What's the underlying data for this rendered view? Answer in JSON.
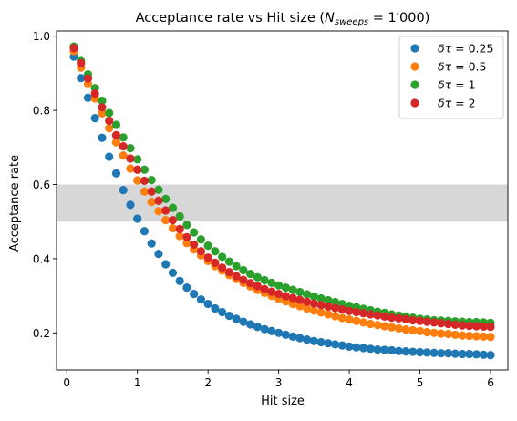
{
  "chart_data": {
    "type": "scatter",
    "title": "Acceptance rate vs Hit size (N_sweeps = 1′000)",
    "title_parts": {
      "prefix": "Acceptance rate vs Hit size (",
      "var": "N",
      "sub": "sweeps",
      "suffix": " = 1′000)"
    },
    "xlabel": "Hit size",
    "ylabel": "Acceptance rate",
    "xlim": [
      -0.145,
      6.245
    ],
    "ylim": [
      0.1,
      1.014
    ],
    "xticks": [
      0,
      1,
      2,
      3,
      4,
      5,
      6
    ],
    "xtick_labels": [
      "0",
      "1",
      "2",
      "3",
      "4",
      "5",
      "6"
    ],
    "yticks": [
      0.2,
      0.4,
      0.6,
      0.8,
      1.0
    ],
    "ytick_labels": [
      "0.2",
      "0.4",
      "0.6",
      "0.8",
      "1.0"
    ],
    "grid": false,
    "legend_position": "top-right",
    "shaded_band": {
      "y0": 0.5,
      "y1": 0.6,
      "color": "#d3d3d3"
    },
    "x": [
      0.1,
      0.2,
      0.3,
      0.4,
      0.5,
      0.6,
      0.7,
      0.8,
      0.9,
      1.0,
      1.1,
      1.2,
      1.3,
      1.4,
      1.5,
      1.6,
      1.7,
      1.8,
      1.9,
      2.0,
      2.1,
      2.2,
      2.3,
      2.4,
      2.5,
      2.6,
      2.7,
      2.8,
      2.9,
      3.0,
      3.1,
      3.2,
      3.3,
      3.4,
      3.5,
      3.6,
      3.7,
      3.8,
      3.9,
      4.0,
      4.1,
      4.2,
      4.3,
      4.4,
      4.5,
      4.6,
      4.7,
      4.8,
      4.9,
      5.0,
      5.1,
      5.2,
      5.3,
      5.4,
      5.5,
      5.6,
      5.7,
      5.8,
      5.9,
      6.0
    ],
    "series": [
      {
        "name": "δτ = 0.25",
        "label_parts": {
          "var": "δτ",
          "eq": " = 0.25"
        },
        "color": "#1f77b4",
        "values": [
          0.945,
          0.887,
          0.834,
          0.779,
          0.726,
          0.675,
          0.63,
          0.585,
          0.545,
          0.508,
          0.474,
          0.441,
          0.413,
          0.385,
          0.362,
          0.34,
          0.322,
          0.305,
          0.29,
          0.278,
          0.266,
          0.256,
          0.246,
          0.238,
          0.23,
          0.223,
          0.216,
          0.21,
          0.205,
          0.2,
          0.195,
          0.19,
          0.186,
          0.182,
          0.178,
          0.175,
          0.172,
          0.169,
          0.166,
          0.163,
          0.161,
          0.159,
          0.157,
          0.155,
          0.154,
          0.153,
          0.151,
          0.15,
          0.149,
          0.148,
          0.147,
          0.146,
          0.145,
          0.145,
          0.144,
          0.143,
          0.143,
          0.142,
          0.141,
          0.14
        ]
      },
      {
        "name": "δτ = 0.5",
        "label_parts": {
          "var": "δτ",
          "eq": " = 0.5"
        },
        "color": "#ff7f0e",
        "values": [
          0.96,
          0.915,
          0.871,
          0.832,
          0.792,
          0.752,
          0.714,
          0.678,
          0.643,
          0.611,
          0.581,
          0.553,
          0.528,
          0.504,
          0.482,
          0.461,
          0.442,
          0.425,
          0.409,
          0.394,
          0.38,
          0.368,
          0.356,
          0.345,
          0.335,
          0.325,
          0.316,
          0.308,
          0.3,
          0.292,
          0.285,
          0.278,
          0.272,
          0.266,
          0.26,
          0.255,
          0.25,
          0.245,
          0.24,
          0.236,
          0.232,
          0.228,
          0.224,
          0.221,
          0.218,
          0.215,
          0.212,
          0.209,
          0.207,
          0.205,
          0.202,
          0.2,
          0.198,
          0.197,
          0.195,
          0.193,
          0.192,
          0.191,
          0.19,
          0.189
        ]
      },
      {
        "name": "δτ = 1",
        "label_parts": {
          "var": "δτ",
          "eq": " = 1"
        },
        "color": "#2ca02c",
        "values": [
          0.972,
          0.933,
          0.897,
          0.86,
          0.826,
          0.793,
          0.761,
          0.727,
          0.698,
          0.668,
          0.64,
          0.612,
          0.586,
          0.561,
          0.537,
          0.514,
          0.491,
          0.471,
          0.452,
          0.435,
          0.42,
          0.405,
          0.392,
          0.38,
          0.369,
          0.359,
          0.35,
          0.342,
          0.335,
          0.328,
          0.322,
          0.316,
          0.31,
          0.304,
          0.298,
          0.293,
          0.288,
          0.283,
          0.278,
          0.273,
          0.269,
          0.265,
          0.261,
          0.257,
          0.254,
          0.25,
          0.247,
          0.244,
          0.241,
          0.238,
          0.236,
          0.234,
          0.233,
          0.232,
          0.231,
          0.23,
          0.229,
          0.229,
          0.228,
          0.227
        ]
      },
      {
        "name": "δτ = 2",
        "label_parts": {
          "var": "δτ",
          "eq": " = 2"
        },
        "color": "#d62728",
        "values": [
          0.968,
          0.927,
          0.886,
          0.845,
          0.808,
          0.772,
          0.733,
          0.703,
          0.67,
          0.64,
          0.61,
          0.581,
          0.556,
          0.53,
          0.504,
          0.48,
          0.458,
          0.438,
          0.42,
          0.403,
          0.389,
          0.376,
          0.364,
          0.353,
          0.343,
          0.334,
          0.326,
          0.318,
          0.311,
          0.305,
          0.299,
          0.294,
          0.289,
          0.284,
          0.279,
          0.275,
          0.271,
          0.267,
          0.263,
          0.259,
          0.256,
          0.253,
          0.25,
          0.247,
          0.244,
          0.241,
          0.239,
          0.237,
          0.234,
          0.232,
          0.23,
          0.228,
          0.226,
          0.224,
          0.222,
          0.22,
          0.219,
          0.218,
          0.217,
          0.216
        ]
      }
    ]
  }
}
